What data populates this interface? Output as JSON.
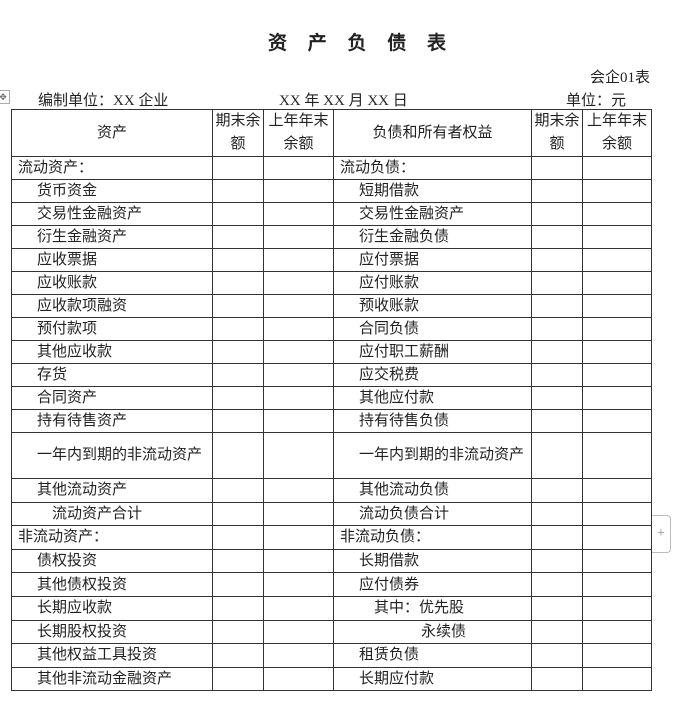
{
  "title": "资 产 负 债 表",
  "form_no": "会企01表",
  "unit_org": "编制单位：XX 企业",
  "date": "XX 年 XX 月 XX 日",
  "unit": "单位：元",
  "headers": {
    "asset": "资产",
    "period_end": "期末余额",
    "prev_year_end": "上年年末余额",
    "liab": "负债和所有者权益",
    "period_end2": "期末余额",
    "prev_year_end2": "上年年末余额"
  },
  "icons": {
    "move": "table-move-handle-icon",
    "add": "plus-icon"
  },
  "rows": [
    {
      "a": "流动资产：",
      "ai": 0,
      "l": "流动负债：",
      "li": 0
    },
    {
      "a": "货币资金",
      "ai": 1,
      "l": "短期借款",
      "li": 1
    },
    {
      "a": "交易性金融资产",
      "ai": 1,
      "l": "交易性金融资产",
      "li": 1
    },
    {
      "a": "衍生金融资产",
      "ai": 1,
      "l": "衍生金融负债",
      "li": 1
    },
    {
      "a": "应收票据",
      "ai": 1,
      "l": "应付票据",
      "li": 1
    },
    {
      "a": "应收账款",
      "ai": 1,
      "l": "应付账款",
      "li": 1
    },
    {
      "a": "应收款项融资",
      "ai": 1,
      "l": "预收账款",
      "li": 1
    },
    {
      "a": "预付款项",
      "ai": 1,
      "l": "合同负债",
      "li": 1
    },
    {
      "a": "其他应收款",
      "ai": 1,
      "l": "应付职工薪酬",
      "li": 1
    },
    {
      "a": "存货",
      "ai": 1,
      "l": "应交税费",
      "li": 1
    },
    {
      "a": "合同资产",
      "ai": 1,
      "l": "其他应付款",
      "li": 1
    },
    {
      "a": "持有待售资产",
      "ai": 1,
      "l": "持有待售负债",
      "li": 1
    },
    {
      "a": "一年内到期的非流动资产",
      "ai": 1,
      "l": "一年内到期的非流动资产",
      "li": 1,
      "dbl": true
    },
    {
      "a": "其他流动资产",
      "ai": 1,
      "l": "其他流动负债",
      "li": 1
    },
    {
      "a": "流动资产合计",
      "ai": 2,
      "l": "流动负债合计",
      "li": 1
    },
    {
      "a": "非流动资产：",
      "ai": 0,
      "l": "非流动负债：",
      "li": 0
    },
    {
      "a": "债权投资",
      "ai": 1,
      "l": "长期借款",
      "li": 1
    },
    {
      "a": "其他债权投资",
      "ai": 1,
      "l": "应付债券",
      "li": 1
    },
    {
      "a": "长期应收款",
      "ai": 1,
      "l": "其中：优先股",
      "li": 3
    },
    {
      "a": "长期股权投资",
      "ai": 1,
      "l": "永续债",
      "li": 4
    },
    {
      "a": "其他权益工具投资",
      "ai": 1,
      "l": "租赁负债",
      "li": 1
    },
    {
      "a": "其他非流动金融资产",
      "ai": 1,
      "l": "长期应付款",
      "li": 1
    }
  ]
}
